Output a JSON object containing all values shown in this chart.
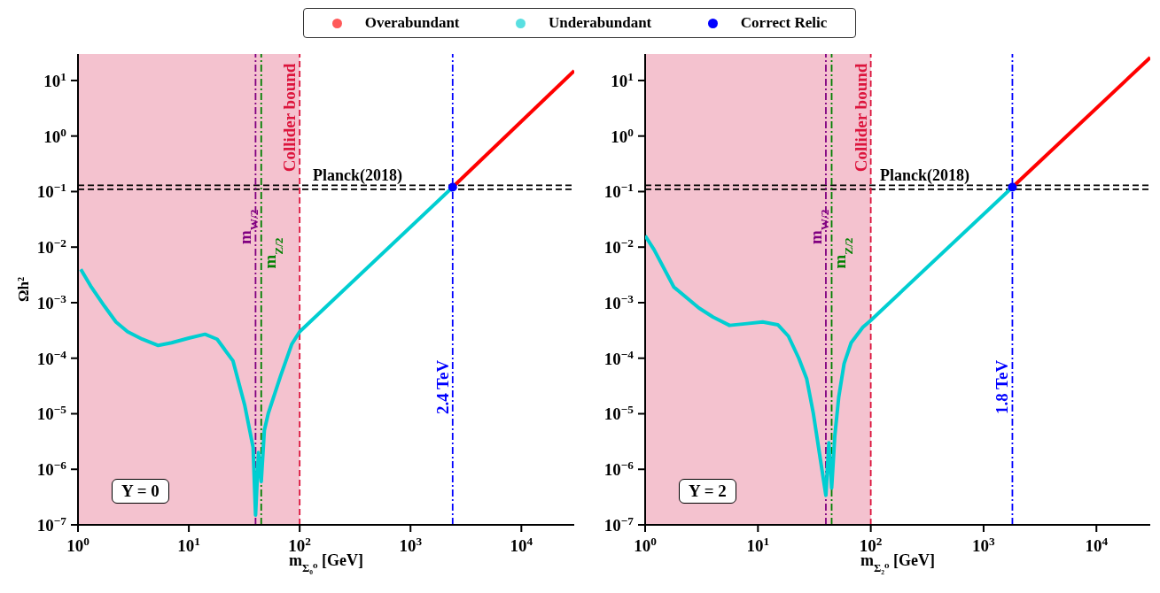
{
  "chart_data": [
    {
      "type": "scatter",
      "legend": "top",
      "xlabel": "m$_{Σ₀⁰}$ [GeV]",
      "ylabel": "Ωh²",
      "log": "xy",
      "xlim": [
        1,
        30000
      ],
      "ylim": [
        1e-07,
        30
      ],
      "xticks": [
        {
          "value": 1,
          "label": "10$^{0}$"
        },
        {
          "value": 10,
          "label": "10$^{1}$"
        },
        {
          "value": 100,
          "label": "10$^{2}$"
        },
        {
          "value": 1000,
          "label": "10$^{3}$"
        },
        {
          "value": 10000,
          "label": "10$^{4}$"
        }
      ],
      "yticks": [
        {
          "value": 1e-07,
          "label": "10$^{−7}$"
        },
        {
          "value": 1e-06,
          "label": "10$^{−6}$"
        },
        {
          "value": 1e-05,
          "label": "10$^{−5}$"
        },
        {
          "value": 0.0001,
          "label": "10$^{−4}$"
        },
        {
          "value": 0.001,
          "label": "10$^{−3}$"
        },
        {
          "value": 0.01,
          "label": "10$^{−2}$"
        },
        {
          "value": 0.1,
          "label": "10$^{−1}$"
        },
        {
          "value": 1,
          "label": "10$^{0}$"
        },
        {
          "value": 10,
          "label": "10$^{1}$"
        }
      ],
      "series": [
        {
          "name": "Overabundant",
          "type": "line",
          "marker": "none",
          "color": "#ff0000",
          "x": [
            2400,
            30000
          ],
          "values": [
            0.12,
            15
          ]
        },
        {
          "name": "Underabundant",
          "type": "line",
          "marker": "none",
          "color": "#00ced1",
          "x": [
            1.06,
            1.3,
            1.73,
            2.2,
            2.8,
            3.8,
            5.3,
            7,
            10,
            14,
            18,
            25,
            32,
            38,
            40,
            42.5,
            45,
            48,
            52,
            67,
            85,
            100,
            2400
          ],
          "values": [
            0.004,
            0.002,
            0.00087,
            0.00045,
            0.0003,
            0.00022,
            0.00017,
            0.00019,
            0.00023,
            0.00027,
            0.00022,
            9e-05,
            1.4e-05,
            2.5e-06,
            1.5e-07,
            2e-06,
            6e-07,
            5e-06,
            1e-05,
            4.7e-05,
            0.00018,
            0.0003,
            0.12
          ]
        },
        {
          "name": "Correct Relic",
          "marker": "circle",
          "color": "#0000ff",
          "x": [
            2400
          ],
          "values": [
            0.12
          ]
        }
      ],
      "bands": [
        {
          "axis": "x",
          "from": 1,
          "to": 100,
          "color": "#f4c2cf"
        }
      ],
      "ref_lines": [
        {
          "axis": "y",
          "value": 0.11,
          "color": "#000000",
          "line_style": "dashed"
        },
        {
          "axis": "y",
          "value": 0.13,
          "label": "Planck(2018)",
          "color": "#000000",
          "line_style": "dashed"
        },
        {
          "axis": "x",
          "value": 100,
          "label": "Collider bound",
          "color": "#dc143c",
          "line_style": "dashed"
        },
        {
          "axis": "x",
          "value": 40,
          "label": "m$_{W/2}$",
          "color": "#800080",
          "line_style": "dotted"
        },
        {
          "axis": "x",
          "value": 45,
          "label": "m$_{Z/2}$",
          "color": "#008000",
          "line_style": "dotted"
        },
        {
          "axis": "x",
          "value": 2400,
          "label": "2.4 TeV",
          "color": "#0000ff",
          "line_style": "dotted"
        }
      ],
      "annotations": [
        "Y = 0"
      ]
    },
    {
      "type": "scatter",
      "xlabel": "m$_{Σ₂⁰}$ [GeV]",
      "log": "xy",
      "xlim": [
        1,
        30000
      ],
      "ylim": [
        1e-07,
        30
      ],
      "xticks": [
        {
          "value": 1,
          "label": "10$^{0}$"
        },
        {
          "value": 10,
          "label": "10$^{1}$"
        },
        {
          "value": 100,
          "label": "10$^{2}$"
        },
        {
          "value": 1000,
          "label": "10$^{3}$"
        },
        {
          "value": 10000,
          "label": "10$^{4}$"
        }
      ],
      "yticks": [
        {
          "value": 1e-07,
          "label": "10$^{−7}$"
        },
        {
          "value": 1e-06,
          "label": "10$^{−6}$"
        },
        {
          "value": 1e-05,
          "label": "10$^{−5}$"
        },
        {
          "value": 0.0001,
          "label": "10$^{−4}$"
        },
        {
          "value": 0.001,
          "label": "10$^{−3}$"
        },
        {
          "value": 0.01,
          "label": "10$^{−2}$"
        },
        {
          "value": 0.1,
          "label": "10$^{−1}$"
        },
        {
          "value": 1,
          "label": "10$^{0}$"
        },
        {
          "value": 10,
          "label": "10$^{1}$"
        }
      ],
      "series": [
        {
          "type": "line",
          "marker": "none",
          "color": "#ff0000",
          "x": [
            1800,
            30000
          ],
          "values": [
            0.12,
            26
          ]
        },
        {
          "type": "line",
          "marker": "none",
          "color": "#00ced1",
          "x": [
            1,
            1.2,
            1.8,
            3,
            4,
            5.6,
            8,
            11,
            15,
            18.6,
            23,
            27,
            31,
            35,
            40,
            42.5,
            45,
            48,
            52,
            58,
            67,
            85,
            100,
            1800
          ],
          "values": [
            0.016,
            0.009,
            0.0019,
            0.0008,
            0.00055,
            0.00039,
            0.00042,
            0.00045,
            0.0004,
            0.00025,
            0.0001,
            4.3e-05,
            1e-05,
            2e-06,
            3.4e-07,
            3e-06,
            4.6e-07,
            4e-06,
            2e-05,
            8e-05,
            0.00019,
            0.00036,
            0.00048,
            0.12
          ]
        },
        {
          "marker": "circle",
          "color": "#0000ff",
          "x": [
            1800
          ],
          "values": [
            0.12
          ]
        }
      ],
      "bands": [
        {
          "axis": "x",
          "from": 1,
          "to": 100,
          "color": "#f4c2cf"
        }
      ],
      "ref_lines": [
        {
          "axis": "y",
          "value": 0.11,
          "color": "#000000",
          "line_style": "dashed"
        },
        {
          "axis": "y",
          "value": 0.13,
          "label": "Planck(2018)",
          "color": "#000000",
          "line_style": "dashed"
        },
        {
          "axis": "x",
          "value": 100,
          "label": "Collider bound",
          "color": "#dc143c",
          "line_style": "dashed"
        },
        {
          "axis": "x",
          "value": 40,
          "label": "m$_{W/2}$",
          "color": "#800080",
          "line_style": "dotted"
        },
        {
          "axis": "x",
          "value": 45,
          "label": "m$_{Z/2}$",
          "color": "#008000",
          "line_style": "dotted"
        },
        {
          "axis": "x",
          "value": 1800,
          "label": "1.8 TeV",
          "color": "#0000ff",
          "line_style": "dotted"
        }
      ],
      "annotations": [
        "Y = 2"
      ]
    }
  ]
}
